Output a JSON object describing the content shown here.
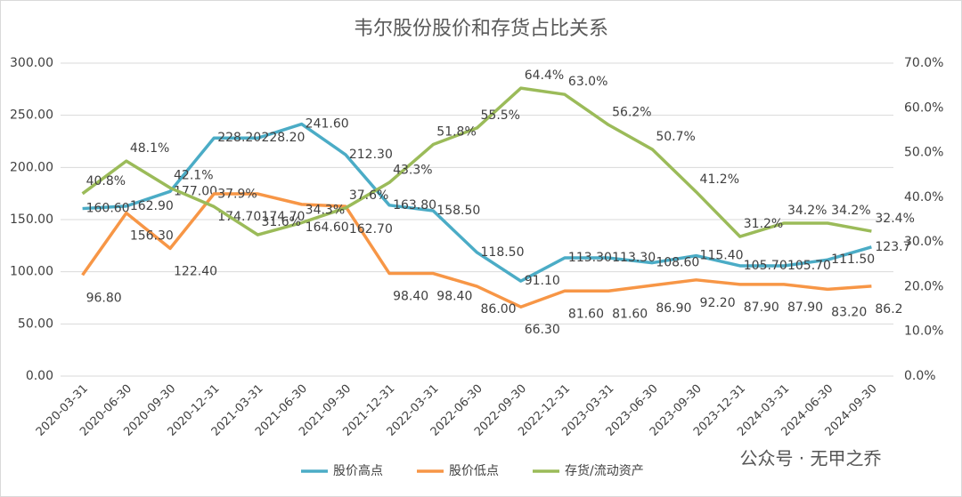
{
  "chart_data": {
    "type": "line",
    "title": "韦尔股份股价和存货占比关系",
    "annotation": "公众号 · 无甲之乔",
    "categories": [
      "2020-03-31",
      "2020-06-30",
      "2020-09-30",
      "2020-12-31",
      "2021-03-31",
      "2021-06-30",
      "2021-09-30",
      "2021-12-31",
      "2022-03-31",
      "2022-06-30",
      "2022-09-30",
      "2022-12-31",
      "2023-03-31",
      "2023-06-30",
      "2023-09-30",
      "2023-12-31",
      "2024-03-31",
      "2024-06-30",
      "2024-09-30"
    ],
    "series": [
      {
        "name": "股价高点",
        "color": "#4bacc6",
        "axis": "y",
        "values": [
          160.6,
          162.9,
          177,
          228.2,
          228.2,
          241.6,
          212.3,
          163.8,
          158.5,
          118.5,
          91.1,
          113.3,
          113.3,
          108.6,
          115.4,
          105.7,
          105.7,
          111.5,
          123.7
        ],
        "value_labels": [
          "160.60",
          "162.90",
          "177.00",
          "228.20",
          "228.20",
          "241.60",
          "212.30",
          "163.80",
          "158.50",
          "118.50",
          "91.10",
          "113.30",
          "113.30",
          "108.60",
          "115.40",
          "105.70",
          "105.70",
          "111.50",
          "123.7"
        ]
      },
      {
        "name": "股价低点",
        "color": "#f79646",
        "axis": "y",
        "values": [
          96.8,
          156.3,
          122.4,
          174.7,
          174.7,
          164.6,
          162.7,
          98.4,
          98.4,
          86,
          66.3,
          81.6,
          81.6,
          86.9,
          92.2,
          87.9,
          87.9,
          83.2,
          86.2
        ],
        "value_labels": [
          "96.80",
          "156.30",
          "122.40",
          "174.70",
          "174.70",
          "164.60",
          "162.70",
          "98.40",
          "98.40",
          "86.00",
          "66.30",
          "81.60",
          "81.60",
          "86.90",
          "92.20",
          "87.90",
          "87.90",
          "83.20",
          "86.2"
        ]
      },
      {
        "name": "存货/流动资产",
        "color": "#9bbb59",
        "axis": "y2",
        "values": [
          40.8,
          48.1,
          42.1,
          37.9,
          31.6,
          34.3,
          37.6,
          43.3,
          51.8,
          55.5,
          64.4,
          63.0,
          56.2,
          50.7,
          41.2,
          31.2,
          34.2,
          34.2,
          32.4
        ],
        "value_labels": [
          "40.8%",
          "48.1%",
          "42.1%",
          "37.9%",
          "31.6%",
          "34.3%",
          "37.6%",
          "43.3%",
          "51.8%",
          "55.5%",
          "64.4%",
          "63.0%",
          "56.2%",
          "50.7%",
          "41.2%",
          "31.2%",
          "34.2%",
          "34.2%",
          "32.4%"
        ]
      }
    ],
    "ylim": [
      0,
      300
    ],
    "yticks": [
      {
        "value": 0,
        "label": "0.00"
      },
      {
        "value": 50,
        "label": "50.00"
      },
      {
        "value": 100,
        "label": "100.00"
      },
      {
        "value": 150,
        "label": "150.00"
      },
      {
        "value": 200,
        "label": "200.00"
      },
      {
        "value": 250,
        "label": "250.00"
      },
      {
        "value": 300,
        "label": "300.00"
      }
    ],
    "y2lim": [
      0,
      70
    ],
    "y2ticks": [
      {
        "value": 0,
        "label": "0.0%"
      },
      {
        "value": 10,
        "label": "10.0%"
      },
      {
        "value": 20,
        "label": "20.0%"
      },
      {
        "value": 30,
        "label": "30.0%"
      },
      {
        "value": 40,
        "label": "40.0%"
      },
      {
        "value": 50,
        "label": "50.0%"
      },
      {
        "value": 60,
        "label": "60.0%"
      },
      {
        "value": 70,
        "label": "70.0%"
      }
    ],
    "grid": true,
    "legend": "bottom"
  }
}
